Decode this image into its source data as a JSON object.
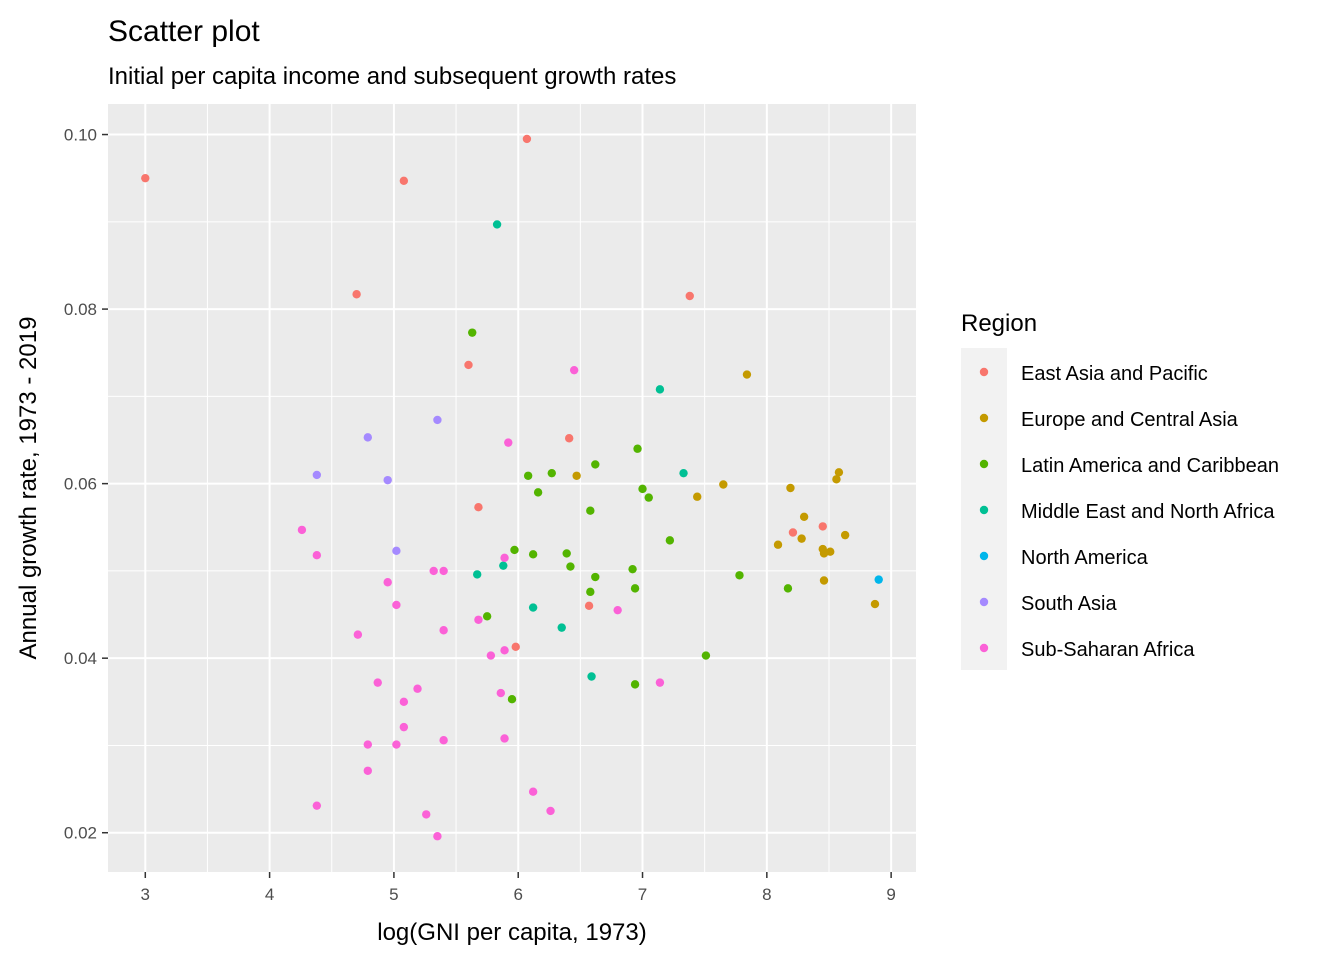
{
  "chart_data": {
    "type": "scatter",
    "title": "Scatter plot",
    "subtitle": "Initial per capita income and subsequent growth rates",
    "xlabel": "log(GNI per capita, 1973)",
    "ylabel": "Annual growth rate, 1973 - 2019",
    "xlim": [
      2.7,
      9.2
    ],
    "ylim": [
      0.0155,
      0.1035
    ],
    "xticks": [
      3,
      4,
      5,
      6,
      7,
      8,
      9
    ],
    "xtick_labels": [
      "3",
      "4",
      "5",
      "6",
      "7",
      "8",
      "9"
    ],
    "yticks": [
      0.02,
      0.04,
      0.06,
      0.08,
      0.1
    ],
    "ytick_labels": [
      "0.02",
      "0.04",
      "0.06",
      "0.08",
      "0.10"
    ],
    "grid": true,
    "legend": {
      "title": "Region",
      "position": "right"
    },
    "series": [
      {
        "name": "East Asia and Pacific",
        "color": "#F8766D",
        "points": [
          [
            3.0,
            0.095
          ],
          [
            5.08,
            0.0947
          ],
          [
            6.07,
            0.0995
          ],
          [
            4.7,
            0.0817
          ],
          [
            7.38,
            0.0815
          ],
          [
            5.6,
            0.0736
          ],
          [
            6.41,
            0.0652
          ],
          [
            5.68,
            0.0573
          ],
          [
            6.57,
            0.046
          ],
          [
            5.98,
            0.0413
          ],
          [
            8.21,
            0.0544
          ],
          [
            8.45,
            0.0551
          ]
        ]
      },
      {
        "name": "Europe and Central Asia",
        "color": "#C49A00",
        "points": [
          [
            7.84,
            0.0725
          ],
          [
            6.47,
            0.0609
          ],
          [
            7.65,
            0.0599
          ],
          [
            7.44,
            0.0585
          ],
          [
            8.19,
            0.0595
          ],
          [
            8.3,
            0.0562
          ],
          [
            8.58,
            0.0613
          ],
          [
            8.56,
            0.0605
          ],
          [
            8.63,
            0.0541
          ],
          [
            8.09,
            0.053
          ],
          [
            8.28,
            0.0537
          ],
          [
            8.45,
            0.0525
          ],
          [
            8.46,
            0.052
          ],
          [
            8.51,
            0.0522
          ],
          [
            8.46,
            0.0489
          ],
          [
            8.87,
            0.0462
          ]
        ]
      },
      {
        "name": "Latin America and Caribbean",
        "color": "#53B400",
        "points": [
          [
            5.63,
            0.0773
          ],
          [
            6.96,
            0.064
          ],
          [
            6.62,
            0.0622
          ],
          [
            6.27,
            0.0612
          ],
          [
            6.08,
            0.0609
          ],
          [
            7.0,
            0.0594
          ],
          [
            6.16,
            0.059
          ],
          [
            7.05,
            0.0584
          ],
          [
            6.58,
            0.0569
          ],
          [
            7.22,
            0.0535
          ],
          [
            5.97,
            0.0524
          ],
          [
            6.12,
            0.0519
          ],
          [
            6.39,
            0.052
          ],
          [
            6.42,
            0.0505
          ],
          [
            6.92,
            0.0502
          ],
          [
            6.62,
            0.0493
          ],
          [
            7.78,
            0.0495
          ],
          [
            6.58,
            0.0476
          ],
          [
            6.94,
            0.048
          ],
          [
            8.17,
            0.048
          ],
          [
            5.75,
            0.0448
          ],
          [
            7.51,
            0.0403
          ],
          [
            6.94,
            0.037
          ],
          [
            5.95,
            0.0353
          ]
        ]
      },
      {
        "name": "Middle East and North Africa",
        "color": "#00C094",
        "points": [
          [
            5.83,
            0.0897
          ],
          [
            7.14,
            0.0708
          ],
          [
            7.33,
            0.0612
          ],
          [
            5.67,
            0.0496
          ],
          [
            5.88,
            0.0506
          ],
          [
            6.12,
            0.0458
          ],
          [
            6.35,
            0.0435
          ],
          [
            6.59,
            0.0379
          ]
        ]
      },
      {
        "name": "North America",
        "color": "#00B6EB",
        "points": [
          [
            8.9,
            0.049
          ]
        ]
      },
      {
        "name": "South Asia",
        "color": "#A58AFF",
        "points": [
          [
            5.35,
            0.0673
          ],
          [
            4.79,
            0.0653
          ],
          [
            4.38,
            0.061
          ],
          [
            4.95,
            0.0604
          ],
          [
            5.02,
            0.0523
          ]
        ]
      },
      {
        "name": "Sub-Saharan Africa",
        "color": "#FB61D7",
        "points": [
          [
            6.45,
            0.073
          ],
          [
            5.92,
            0.0647
          ],
          [
            4.26,
            0.0547
          ],
          [
            4.38,
            0.0518
          ],
          [
            5.89,
            0.0515
          ],
          [
            5.32,
            0.05
          ],
          [
            5.4,
            0.05
          ],
          [
            4.95,
            0.0487
          ],
          [
            5.02,
            0.0461
          ],
          [
            6.8,
            0.0455
          ],
          [
            5.68,
            0.0444
          ],
          [
            5.4,
            0.0432
          ],
          [
            4.71,
            0.0427
          ],
          [
            5.89,
            0.0409
          ],
          [
            5.78,
            0.0403
          ],
          [
            4.87,
            0.0372
          ],
          [
            5.19,
            0.0365
          ],
          [
            5.86,
            0.036
          ],
          [
            5.08,
            0.035
          ],
          [
            7.14,
            0.0372
          ],
          [
            5.08,
            0.0321
          ],
          [
            5.89,
            0.0308
          ],
          [
            5.4,
            0.0306
          ],
          [
            4.79,
            0.0301
          ],
          [
            5.02,
            0.0301
          ],
          [
            4.79,
            0.0271
          ],
          [
            6.12,
            0.0247
          ],
          [
            4.38,
            0.0231
          ],
          [
            6.26,
            0.0225
          ],
          [
            5.26,
            0.0221
          ],
          [
            5.35,
            0.0196
          ]
        ]
      }
    ]
  }
}
